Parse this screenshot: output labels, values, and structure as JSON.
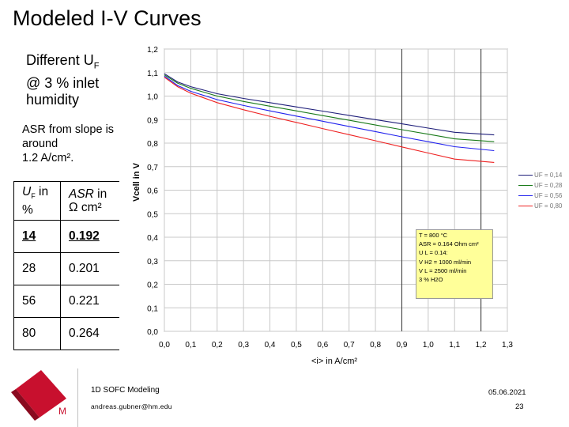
{
  "slide": {
    "title": "Modeled I-V Curves",
    "subtitle_line1": "Different U",
    "subtitle_sub": "F",
    "subtitle_line2": "@ 3 % inlet",
    "subtitle_line3": "humidity",
    "asr_note_line1": "ASR from slope is",
    "asr_note_line2": "around",
    "asr_note_line3": "1.2 A/cm²."
  },
  "asr_table": {
    "header_uf": "U",
    "header_uf_sub": "F",
    "header_uf_rest": " in",
    "header_uf_unit": "%",
    "header_asr": "ASR",
    "header_asr_rest": " in",
    "header_asr_unit": "Ω cm²",
    "rows": [
      {
        "uf": "14",
        "asr": "0.192"
      },
      {
        "uf": "28",
        "asr": "0.201"
      },
      {
        "uf": "56",
        "asr": "0.221"
      },
      {
        "uf": "80",
        "asr": "0.264"
      }
    ]
  },
  "chart_data": {
    "type": "line",
    "xlabel": "<i> in A/cm²",
    "ylabel": "Vcell in V",
    "xlim": [
      0,
      1.3
    ],
    "ylim": [
      0,
      1.2
    ],
    "x_ticks": [
      "0,0",
      "0,1",
      "0,2",
      "0,3",
      "0,4",
      "0,5",
      "0,6",
      "0,7",
      "0,8",
      "0,9",
      "1,0",
      "1,1",
      "1,2",
      "1,3"
    ],
    "y_ticks": [
      "0,0",
      "0,1",
      "0,2",
      "0,3",
      "0,4",
      "0,5",
      "0,6",
      "0,7",
      "0,8",
      "0,9",
      "1,0",
      "1,1",
      "1,2"
    ],
    "vertical_lines": [
      0.9,
      1.2
    ],
    "series": [
      {
        "name": "UF = 0,14",
        "color": "#1f1f7a",
        "x": [
          0,
          0.05,
          0.1,
          0.2,
          0.3,
          0.4,
          0.5,
          0.6,
          0.7,
          0.8,
          0.9,
          1.0,
          1.1,
          1.25
        ],
        "y": [
          1.095,
          1.06,
          1.04,
          1.01,
          0.99,
          0.972,
          0.954,
          0.936,
          0.918,
          0.9,
          0.882,
          0.864,
          0.846,
          0.835
        ]
      },
      {
        "name": "UF = 0,28",
        "color": "#1a7a1a",
        "x": [
          0,
          0.05,
          0.1,
          0.2,
          0.3,
          0.4,
          0.5,
          0.6,
          0.7,
          0.8,
          0.9,
          1.0,
          1.1,
          1.25
        ],
        "y": [
          1.09,
          1.055,
          1.033,
          1.0,
          0.977,
          0.957,
          0.937,
          0.917,
          0.897,
          0.877,
          0.857,
          0.838,
          0.818,
          0.806
        ]
      },
      {
        "name": "UF = 0,56",
        "color": "#2222ee",
        "x": [
          0,
          0.05,
          0.1,
          0.2,
          0.3,
          0.4,
          0.5,
          0.6,
          0.7,
          0.8,
          0.9,
          1.0,
          1.1,
          1.25
        ],
        "y": [
          1.085,
          1.045,
          1.02,
          0.985,
          0.96,
          0.937,
          0.915,
          0.893,
          0.871,
          0.849,
          0.827,
          0.806,
          0.785,
          0.768
        ]
      },
      {
        "name": "UF = 0,80",
        "color": "#ee2222",
        "x": [
          0,
          0.05,
          0.1,
          0.2,
          0.3,
          0.4,
          0.5,
          0.6,
          0.7,
          0.8,
          0.9,
          1.0,
          1.1,
          1.25
        ],
        "y": [
          1.08,
          1.04,
          1.012,
          0.972,
          0.942,
          0.914,
          0.888,
          0.862,
          0.836,
          0.81,
          0.784,
          0.758,
          0.732,
          0.718
        ]
      }
    ],
    "annotation": {
      "line1": "T = 800 °C",
      "line2": "ASR = 0.164 Ohm cm²",
      "line3": "U L = 0.14:",
      "line4": "V H2 = 1000 ml/min",
      "line5": "V L = 2500 ml/min",
      "line6": "3 % H2O"
    }
  },
  "footer": {
    "title": "1D SOFC Modeling",
    "email": "andreas.gubner@hm.edu",
    "date": "05.06.2021",
    "page": "23",
    "logo_text": "M"
  },
  "colors": {
    "grid": "#c8c8c8",
    "plot_bg": "#ffffff",
    "annotation_bg": "#ffff99",
    "logo_red": "#c8102e"
  }
}
